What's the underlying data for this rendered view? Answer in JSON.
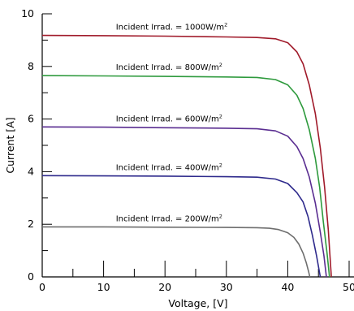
{
  "chart_data": {
    "type": "line",
    "xlabel": "Voltage, [V]",
    "ylabel": "Current [A]",
    "xlim": [
      0,
      50
    ],
    "ylim": [
      0,
      10
    ],
    "x_ticks": [
      0,
      10,
      20,
      30,
      40,
      50
    ],
    "x_tick_labels": [
      "0",
      "10",
      "20",
      "30",
      "40",
      "50"
    ],
    "y_ticks": [
      0,
      2,
      4,
      6,
      8,
      10
    ],
    "y_tick_labels": [
      "0",
      "2",
      "4",
      "6",
      "8",
      "10"
    ],
    "grid": false,
    "series": [
      {
        "name": "Incident Irrad. = 1000W/m",
        "unit_superscript": "2",
        "color": "#a01a2a",
        "points": [
          [
            0,
            9.18
          ],
          [
            10,
            9.17
          ],
          [
            20,
            9.15
          ],
          [
            30,
            9.12
          ],
          [
            35,
            9.1
          ],
          [
            38,
            9.05
          ],
          [
            40,
            8.9
          ],
          [
            41.5,
            8.55
          ],
          [
            42.5,
            8.1
          ],
          [
            43.5,
            7.3
          ],
          [
            44.5,
            6.2
          ],
          [
            45.3,
            4.9
          ],
          [
            46.0,
            3.4
          ],
          [
            46.6,
            1.8
          ],
          [
            47.1,
            0
          ]
        ]
      },
      {
        "name": "Incident Irrad. = 800W/m",
        "unit_superscript": "2",
        "color": "#2e9a3d",
        "points": [
          [
            0,
            7.65
          ],
          [
            10,
            7.64
          ],
          [
            20,
            7.62
          ],
          [
            30,
            7.6
          ],
          [
            35,
            7.58
          ],
          [
            38,
            7.5
          ],
          [
            40,
            7.3
          ],
          [
            41.5,
            6.9
          ],
          [
            42.5,
            6.4
          ],
          [
            43.5,
            5.6
          ],
          [
            44.5,
            4.5
          ],
          [
            45.2,
            3.4
          ],
          [
            45.8,
            2.1
          ],
          [
            46.4,
            0.9
          ],
          [
            46.8,
            0
          ]
        ]
      },
      {
        "name": "Incident Irrad. = 600W/m",
        "unit_superscript": "2",
        "color": "#5a2d91",
        "points": [
          [
            0,
            5.7
          ],
          [
            10,
            5.69
          ],
          [
            20,
            5.67
          ],
          [
            30,
            5.65
          ],
          [
            35,
            5.63
          ],
          [
            38,
            5.55
          ],
          [
            40,
            5.35
          ],
          [
            41.5,
            4.95
          ],
          [
            42.5,
            4.5
          ],
          [
            43.5,
            3.8
          ],
          [
            44.5,
            2.8
          ],
          [
            45.3,
            1.7
          ],
          [
            45.9,
            0.8
          ],
          [
            46.3,
            0
          ]
        ]
      },
      {
        "name": "Incident Irrad. = 400W/m",
        "unit_superscript": "2",
        "color": "#2e2a8c",
        "points": [
          [
            0,
            3.85
          ],
          [
            10,
            3.84
          ],
          [
            20,
            3.83
          ],
          [
            30,
            3.81
          ],
          [
            35,
            3.79
          ],
          [
            38,
            3.72
          ],
          [
            40,
            3.55
          ],
          [
            41.5,
            3.2
          ],
          [
            42.5,
            2.85
          ],
          [
            43.3,
            2.3
          ],
          [
            44.0,
            1.6
          ],
          [
            44.7,
            0.8
          ],
          [
            45.3,
            0
          ]
        ]
      },
      {
        "name": "Incident Irrad. = 200W/m",
        "unit_superscript": "2",
        "color": "#6e6e6e",
        "points": [
          [
            0,
            1.9
          ],
          [
            10,
            1.9
          ],
          [
            20,
            1.89
          ],
          [
            30,
            1.88
          ],
          [
            35,
            1.87
          ],
          [
            37,
            1.85
          ],
          [
            38.5,
            1.8
          ],
          [
            40,
            1.68
          ],
          [
            41,
            1.5
          ],
          [
            41.8,
            1.25
          ],
          [
            42.5,
            0.9
          ],
          [
            43.0,
            0.55
          ],
          [
            43.4,
            0.2
          ],
          [
            43.6,
            0
          ]
        ]
      }
    ]
  }
}
